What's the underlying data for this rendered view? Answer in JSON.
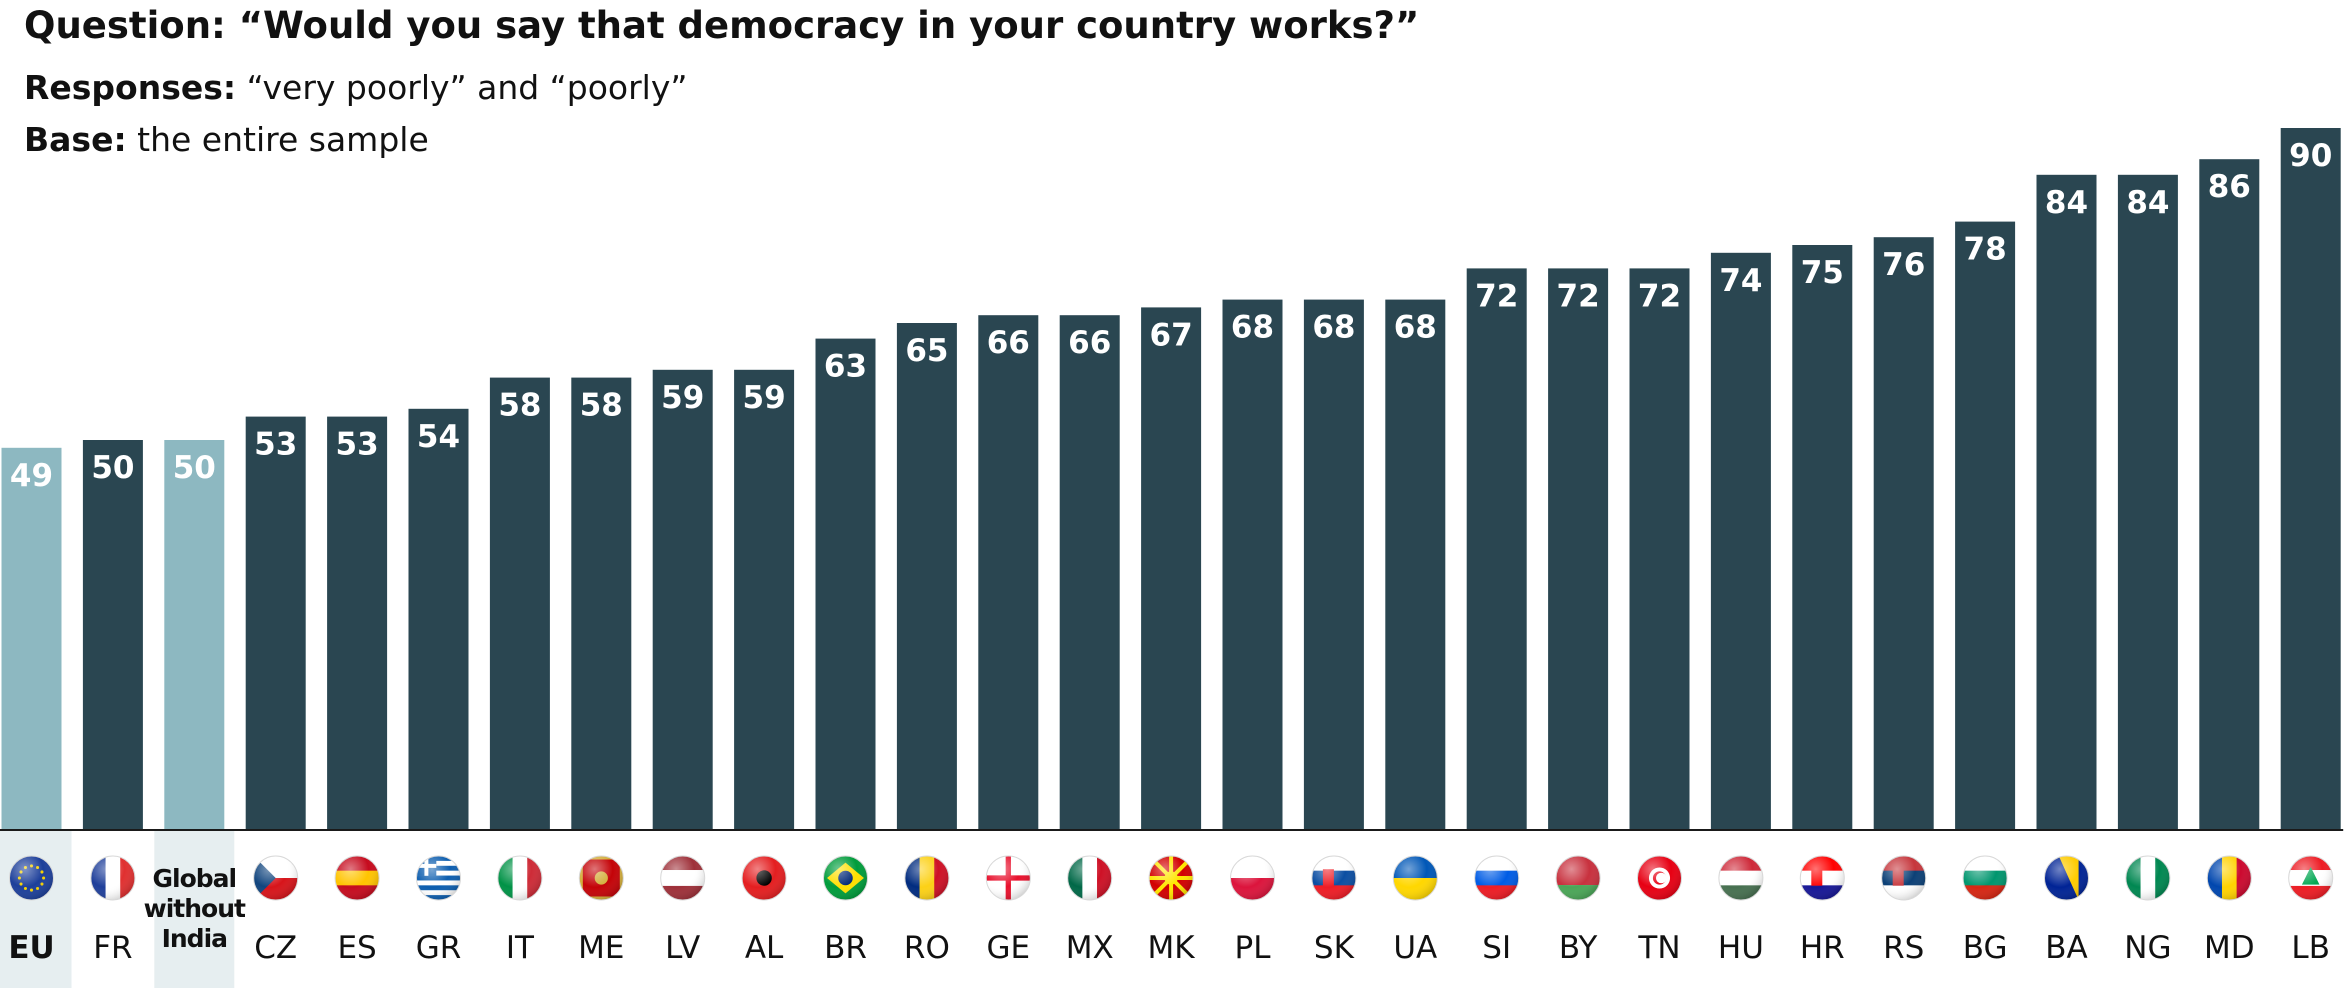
{
  "header": {
    "question_label": "Question:",
    "question_text": "“Would you say that democracy in your country works?”",
    "responses_label": "Responses:",
    "responses_text": "“very poorly” and “poorly”",
    "base_label": "Base:",
    "base_text": "the entire sample"
  },
  "chart_data": {
    "type": "bar",
    "categories": [
      "EU",
      "FR",
      "Global without India",
      "CZ",
      "ES",
      "GR",
      "IT",
      "ME",
      "LV",
      "AL",
      "BR",
      "RO",
      "GE",
      "MX",
      "MK",
      "PL",
      "SK",
      "UA",
      "SI",
      "BY",
      "TN",
      "HU",
      "HR",
      "RS",
      "BG",
      "BA",
      "NG",
      "MD",
      "LB"
    ],
    "values": [
      49,
      50,
      50,
      53,
      53,
      54,
      58,
      58,
      59,
      59,
      63,
      65,
      66,
      66,
      67,
      68,
      68,
      68,
      72,
      72,
      72,
      74,
      75,
      76,
      78,
      84,
      84,
      86,
      90
    ],
    "highlighted": [
      "EU",
      "Global without India"
    ],
    "ylim": [
      0,
      100
    ],
    "data_labels": true,
    "grid": false,
    "legend": "none",
    "colors": {
      "bar": "#2a4651",
      "bar_highlight": "#8db8c1",
      "label_bg_highlight": "#e6eef0",
      "baseline": "#1a1a1a"
    },
    "flag_icons": [
      "eu-flag-icon",
      "france-flag-icon",
      "",
      "czech-flag-icon",
      "spain-flag-icon",
      "greece-flag-icon",
      "italy-flag-icon",
      "montenegro-flag-icon",
      "latvia-flag-icon",
      "albania-flag-icon",
      "brazil-flag-icon",
      "romania-flag-icon",
      "georgia-flag-icon",
      "mexico-flag-icon",
      "north-macedonia-flag-icon",
      "poland-flag-icon",
      "slovakia-flag-icon",
      "ukraine-flag-icon",
      "slovenia-flag-icon",
      "belarus-flag-icon",
      "tunisia-flag-icon",
      "hungary-flag-icon",
      "croatia-flag-icon",
      "serbia-flag-icon",
      "bulgaria-flag-icon",
      "bosnia-flag-icon",
      "nigeria-flag-icon",
      "moldova-flag-icon",
      "lebanon-flag-icon"
    ]
  }
}
